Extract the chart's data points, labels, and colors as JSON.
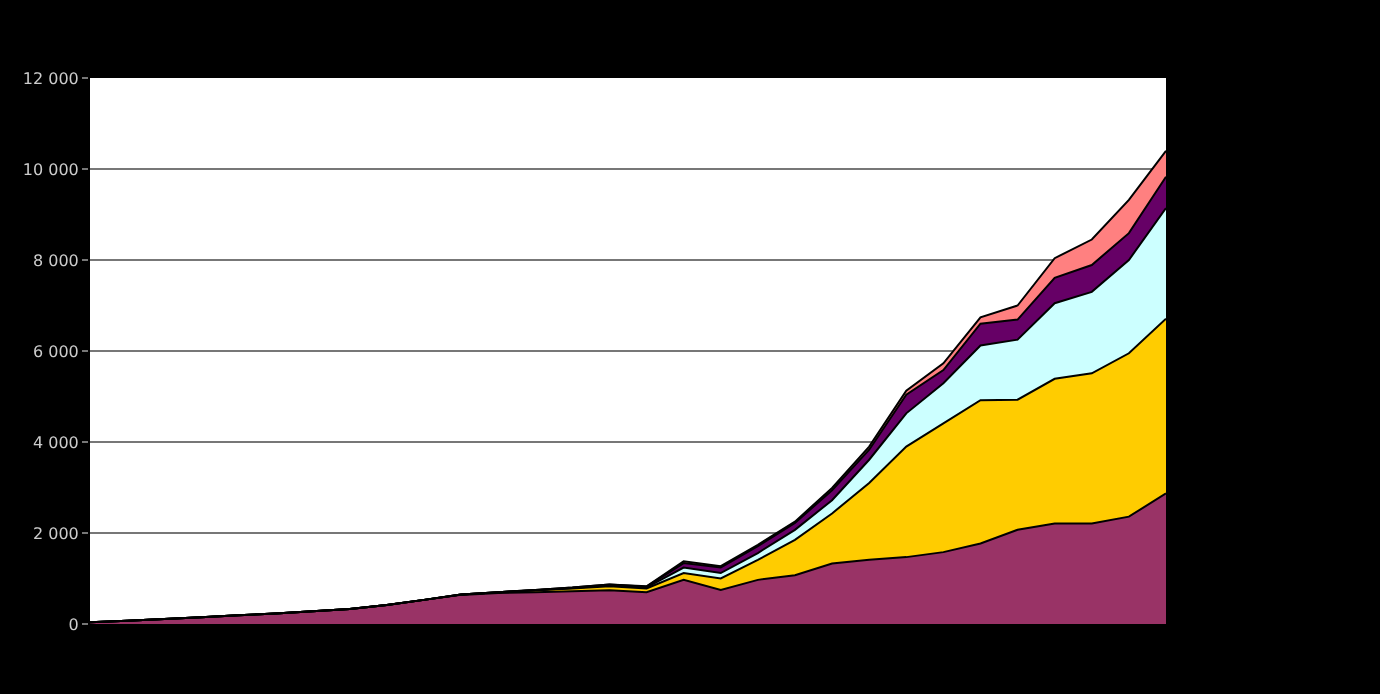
{
  "chart_data": {
    "type": "area",
    "stacked": true,
    "categories": [
      null,
      null,
      null,
      null,
      null,
      null,
      null,
      null,
      null,
      null,
      null,
      null,
      null,
      null,
      null,
      null,
      null,
      null,
      null,
      null,
      null,
      null,
      null,
      null,
      null,
      null,
      null,
      null,
      null,
      null
    ],
    "series": [
      {
        "color": "#993366",
        "values": [
          40,
          70,
          110,
          150,
          190,
          230,
          280,
          330,
          420,
          530,
          640,
          680,
          700,
          720,
          740,
          700,
          970,
          750,
          970,
          1070,
          1330,
          1410,
          1470,
          1580,
          1770,
          2070,
          2210,
          2210,
          2360,
          2870
        ]
      },
      {
        "color": "#ffcc00",
        "values": [
          0,
          0,
          0,
          0,
          0,
          0,
          0,
          0,
          0,
          0,
          10,
          20,
          40,
          60,
          90,
          80,
          150,
          250,
          440,
          780,
          1100,
          1690,
          2430,
          2830,
          3150,
          2860,
          3180,
          3300,
          3590,
          3840
        ]
      },
      {
        "color": "#ccffff",
        "values": [
          0,
          0,
          0,
          0,
          0,
          0,
          0,
          0,
          0,
          0,
          0,
          0,
          0,
          10,
          20,
          20,
          120,
          120,
          150,
          220,
          290,
          510,
          730,
          880,
          1200,
          1320,
          1660,
          1790,
          2050,
          2430
        ]
      },
      {
        "color": "#660066",
        "values": [
          0,
          0,
          0,
          0,
          0,
          0,
          0,
          0,
          0,
          0,
          0,
          0,
          10,
          10,
          20,
          20,
          100,
          120,
          150,
          150,
          220,
          220,
          410,
          290,
          480,
          440,
          560,
          590,
          590,
          690
        ]
      },
      {
        "color": "#ff8080",
        "values": [
          0,
          0,
          0,
          0,
          0,
          0,
          0,
          0,
          0,
          0,
          0,
          0,
          0,
          0,
          0,
          10,
          40,
          30,
          30,
          30,
          50,
          70,
          90,
          150,
          140,
          310,
          430,
          560,
          730,
          570
        ]
      }
    ],
    "ylim": [
      0,
      12000
    ],
    "yticks": [
      0,
      {
        "value": 2000,
        "label": "2 000"
      },
      {
        "value": 4000,
        "label": "4 000"
      },
      {
        "value": 6000,
        "label": "6 000"
      },
      {
        "value": 8000,
        "label": "8 000"
      },
      {
        "value": 10000,
        "label": "10 000"
      },
      {
        "value": 12000,
        "label": "12 000"
      }
    ],
    "grid": "y"
  }
}
